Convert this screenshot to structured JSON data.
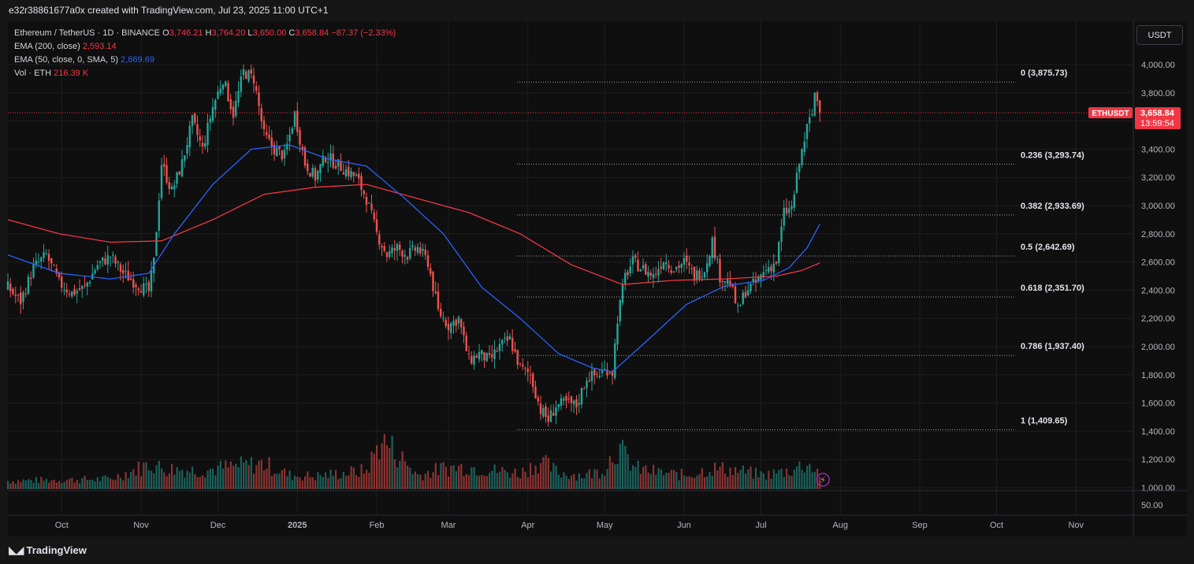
{
  "caption": "e32r38861677a0x created with TradingView.com, Jul 23, 2025 11:00 UTC+1",
  "footer": {
    "brand": "TradingView"
  },
  "currency_button": "USDT",
  "legend": {
    "symbol": "Ethereum / TetherUS · 1D · BINANCE",
    "open_label": "O",
    "open": "3,746.21",
    "high_label": "H",
    "high": "3,764.20",
    "low_label": "L",
    "low": "3,650.00",
    "close_label": "C",
    "close": "3,658.84",
    "change": "−87.37 (−2.33%)",
    "ema200_label": "EMA (200, close)",
    "ema200_value": "2,593.14",
    "ema50_label": "EMA (50, close, 0, SMA, 5)",
    "ema50_value": "2,869.69",
    "vol_label": "Vol · ETH",
    "vol_value": "216.39 K"
  },
  "price_tag": {
    "symbol": "ETHUSDT",
    "price": "3,658.84",
    "countdown": "13:59:54"
  },
  "colors": {
    "up": "#26a69a",
    "down": "#ef5350",
    "ema200": "#f23645",
    "ema50": "#2962ff",
    "grid": "#1e1e1e",
    "fib": "#9aa0a6",
    "background": "#0f0f0f"
  },
  "chart_data": {
    "type": "candlestick",
    "title": "Ethereum / TetherUS · 1D · BINANCE",
    "ylim": [
      1000,
      4200
    ],
    "y_ticks": [
      1000,
      1200,
      1400,
      1600,
      1800,
      2000,
      2200,
      2400,
      2600,
      2800,
      3000,
      3200,
      3400,
      3600,
      3800,
      4000
    ],
    "y_tick_labels": [
      "1,000.00",
      "1,200.00",
      "1,400.00",
      "1,600.00",
      "1,800.00",
      "2,000.00",
      "2,200.00",
      "2,400.00",
      "2,600.00",
      "2,800.00",
      "3,000.00",
      "3,200.00",
      "3,400.00",
      "3,600.00",
      "3,800.00",
      "4,000.00"
    ],
    "x_ticks": [
      {
        "label": "Oct",
        "day": 21
      },
      {
        "label": "Nov",
        "day": 52
      },
      {
        "label": "Dec",
        "day": 82
      },
      {
        "label": "2025",
        "day": 113
      },
      {
        "label": "Feb",
        "day": 144
      },
      {
        "label": "Mar",
        "day": 172
      },
      {
        "label": "Apr",
        "day": 203
      },
      {
        "label": "May",
        "day": 233
      },
      {
        "label": "Jun",
        "day": 264
      },
      {
        "label": "Jul",
        "day": 294
      },
      {
        "label": "Aug",
        "day": 325
      },
      {
        "label": "Sep",
        "day": 356
      },
      {
        "label": "Oct",
        "day": 386
      },
      {
        "label": "Nov",
        "day": 417
      }
    ],
    "volume_axis_label": "50.00",
    "fib_levels": [
      {
        "ratio": "0",
        "price": 3875.73,
        "label": "0 (3,875.73)"
      },
      {
        "ratio": "0.236",
        "price": 3293.74,
        "label": "0.236 (3,293.74)"
      },
      {
        "ratio": "0.382",
        "price": 2933.69,
        "label": "0.382 (2,933.69)"
      },
      {
        "ratio": "0.5",
        "price": 2642.69,
        "label": "0.5 (2,642.69)"
      },
      {
        "ratio": "0.618",
        "price": 2351.7,
        "label": "0.618 (2,351.70)"
      },
      {
        "ratio": "0.786",
        "price": 1937.4,
        "label": "0.786 (1,937.40)"
      },
      {
        "ratio": "1",
        "price": 1409.65,
        "label": "1 (1,409.65)"
      }
    ],
    "last_price": 3658.84,
    "close_series": [
      {
        "day": 0,
        "close": 2420
      },
      {
        "day": 5,
        "close": 2320
      },
      {
        "day": 10,
        "close": 2560
      },
      {
        "day": 15,
        "close": 2650
      },
      {
        "day": 20,
        "close": 2450
      },
      {
        "day": 25,
        "close": 2380
      },
      {
        "day": 30,
        "close": 2420
      },
      {
        "day": 35,
        "close": 2580
      },
      {
        "day": 40,
        "close": 2640
      },
      {
        "day": 45,
        "close": 2520
      },
      {
        "day": 50,
        "close": 2450
      },
      {
        "day": 55,
        "close": 2390
      },
      {
        "day": 57,
        "close": 2600
      },
      {
        "day": 60,
        "close": 3300
      },
      {
        "day": 64,
        "close": 3100
      },
      {
        "day": 68,
        "close": 3300
      },
      {
        "day": 72,
        "close": 3600
      },
      {
        "day": 76,
        "close": 3400
      },
      {
        "day": 80,
        "close": 3700
      },
      {
        "day": 84,
        "close": 3900
      },
      {
        "day": 88,
        "close": 3650
      },
      {
        "day": 92,
        "close": 3950
      },
      {
        "day": 96,
        "close": 3900
      },
      {
        "day": 100,
        "close": 3500
      },
      {
        "day": 104,
        "close": 3400
      },
      {
        "day": 108,
        "close": 3350
      },
      {
        "day": 112,
        "close": 3650
      },
      {
        "day": 116,
        "close": 3300
      },
      {
        "day": 120,
        "close": 3200
      },
      {
        "day": 124,
        "close": 3350
      },
      {
        "day": 128,
        "close": 3300
      },
      {
        "day": 132,
        "close": 3250
      },
      {
        "day": 136,
        "close": 3200
      },
      {
        "day": 140,
        "close": 3050
      },
      {
        "day": 144,
        "close": 2800
      },
      {
        "day": 148,
        "close": 2650
      },
      {
        "day": 152,
        "close": 2700
      },
      {
        "day": 156,
        "close": 2650
      },
      {
        "day": 160,
        "close": 2700
      },
      {
        "day": 164,
        "close": 2600
      },
      {
        "day": 168,
        "close": 2250
      },
      {
        "day": 172,
        "close": 2150
      },
      {
        "day": 176,
        "close": 2200
      },
      {
        "day": 180,
        "close": 1900
      },
      {
        "day": 184,
        "close": 1950
      },
      {
        "day": 188,
        "close": 1900
      },
      {
        "day": 192,
        "close": 2000
      },
      {
        "day": 196,
        "close": 2050
      },
      {
        "day": 200,
        "close": 1850
      },
      {
        "day": 204,
        "close": 1800
      },
      {
        "day": 208,
        "close": 1550
      },
      {
        "day": 211,
        "close": 1480
      },
      {
        "day": 214,
        "close": 1580
      },
      {
        "day": 218,
        "close": 1600
      },
      {
        "day": 222,
        "close": 1580
      },
      {
        "day": 226,
        "close": 1780
      },
      {
        "day": 230,
        "close": 1800
      },
      {
        "day": 234,
        "close": 1840
      },
      {
        "day": 236,
        "close": 1820
      },
      {
        "day": 238,
        "close": 2200
      },
      {
        "day": 241,
        "close": 2500
      },
      {
        "day": 244,
        "close": 2600
      },
      {
        "day": 248,
        "close": 2550
      },
      {
        "day": 252,
        "close": 2500
      },
      {
        "day": 256,
        "close": 2620
      },
      {
        "day": 260,
        "close": 2550
      },
      {
        "day": 264,
        "close": 2600
      },
      {
        "day": 268,
        "close": 2500
      },
      {
        "day": 272,
        "close": 2550
      },
      {
        "day": 275,
        "close": 2750
      },
      {
        "day": 278,
        "close": 2500
      },
      {
        "day": 282,
        "close": 2450
      },
      {
        "day": 285,
        "close": 2250
      },
      {
        "day": 288,
        "close": 2400
      },
      {
        "day": 292,
        "close": 2450
      },
      {
        "day": 296,
        "close": 2550
      },
      {
        "day": 300,
        "close": 2600
      },
      {
        "day": 303,
        "close": 2950
      },
      {
        "day": 306,
        "close": 2980
      },
      {
        "day": 309,
        "close": 3300
      },
      {
        "day": 312,
        "close": 3550
      },
      {
        "day": 314,
        "close": 3650
      },
      {
        "day": 315,
        "close": 3800
      },
      {
        "day": 316,
        "close": 3746
      },
      {
        "day": 317,
        "close": 3658.84
      }
    ],
    "ema200_series": [
      {
        "day": 0,
        "value": 2900
      },
      {
        "day": 20,
        "value": 2800
      },
      {
        "day": 40,
        "value": 2740
      },
      {
        "day": 60,
        "value": 2750
      },
      {
        "day": 80,
        "value": 2900
      },
      {
        "day": 100,
        "value": 3080
      },
      {
        "day": 120,
        "value": 3130
      },
      {
        "day": 140,
        "value": 3150
      },
      {
        "day": 160,
        "value": 3050
      },
      {
        "day": 180,
        "value": 2950
      },
      {
        "day": 200,
        "value": 2800
      },
      {
        "day": 220,
        "value": 2580
      },
      {
        "day": 240,
        "value": 2440
      },
      {
        "day": 260,
        "value": 2470
      },
      {
        "day": 280,
        "value": 2480
      },
      {
        "day": 300,
        "value": 2500
      },
      {
        "day": 310,
        "value": 2540
      },
      {
        "day": 317,
        "value": 2593.14
      }
    ],
    "ema50_series": [
      {
        "day": 0,
        "value": 2650
      },
      {
        "day": 20,
        "value": 2520
      },
      {
        "day": 40,
        "value": 2480
      },
      {
        "day": 55,
        "value": 2520
      },
      {
        "day": 65,
        "value": 2800
      },
      {
        "day": 80,
        "value": 3150
      },
      {
        "day": 95,
        "value": 3400
      },
      {
        "day": 110,
        "value": 3430
      },
      {
        "day": 125,
        "value": 3330
      },
      {
        "day": 140,
        "value": 3280
      },
      {
        "day": 155,
        "value": 3050
      },
      {
        "day": 170,
        "value": 2800
      },
      {
        "day": 185,
        "value": 2420
      },
      {
        "day": 200,
        "value": 2200
      },
      {
        "day": 215,
        "value": 1950
      },
      {
        "day": 228,
        "value": 1850
      },
      {
        "day": 236,
        "value": 1820
      },
      {
        "day": 250,
        "value": 2050
      },
      {
        "day": 265,
        "value": 2300
      },
      {
        "day": 280,
        "value": 2430
      },
      {
        "day": 295,
        "value": 2470
      },
      {
        "day": 305,
        "value": 2560
      },
      {
        "day": 312,
        "value": 2700
      },
      {
        "day": 317,
        "value": 2869.69
      }
    ],
    "volume_series": [
      {
        "day": 0,
        "value": 18
      },
      {
        "day": 20,
        "value": 20
      },
      {
        "day": 40,
        "value": 22
      },
      {
        "day": 56,
        "value": 55
      },
      {
        "day": 60,
        "value": 45
      },
      {
        "day": 75,
        "value": 40
      },
      {
        "day": 90,
        "value": 50
      },
      {
        "day": 100,
        "value": 55
      },
      {
        "day": 110,
        "value": 30
      },
      {
        "day": 120,
        "value": 28
      },
      {
        "day": 140,
        "value": 40
      },
      {
        "day": 146,
        "value": 110
      },
      {
        "day": 160,
        "value": 30
      },
      {
        "day": 170,
        "value": 45
      },
      {
        "day": 180,
        "value": 48
      },
      {
        "day": 190,
        "value": 40
      },
      {
        "day": 200,
        "value": 35
      },
      {
        "day": 208,
        "value": 60
      },
      {
        "day": 215,
        "value": 35
      },
      {
        "day": 225,
        "value": 30
      },
      {
        "day": 232,
        "value": 40
      },
      {
        "day": 238,
        "value": 90
      },
      {
        "day": 245,
        "value": 45
      },
      {
        "day": 255,
        "value": 35
      },
      {
        "day": 265,
        "value": 30
      },
      {
        "day": 275,
        "value": 45
      },
      {
        "day": 285,
        "value": 40
      },
      {
        "day": 295,
        "value": 30
      },
      {
        "day": 305,
        "value": 40
      },
      {
        "day": 312,
        "value": 55
      },
      {
        "day": 317,
        "value": 35
      }
    ]
  }
}
